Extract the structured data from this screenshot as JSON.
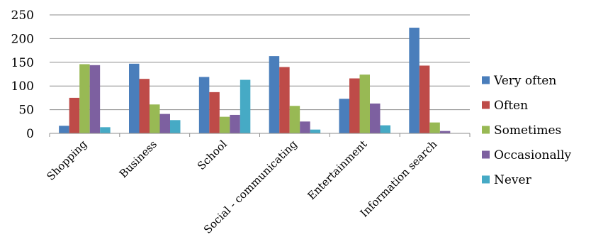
{
  "chart_data": {
    "type": "bar",
    "title": "",
    "xlabel": "",
    "ylabel": "",
    "ylim": [
      0,
      250
    ],
    "yticks": [
      0,
      50,
      100,
      150,
      200,
      250
    ],
    "grid": true,
    "legend_position": "right",
    "categories": [
      "Shopping",
      "Business",
      "School",
      "Social - communicating",
      "Entertainment",
      "Information search"
    ],
    "series": [
      {
        "name": "Very often",
        "color": "#4a7ebb",
        "values": [
          16,
          147,
          119,
          163,
          73,
          223
        ]
      },
      {
        "name": "Often",
        "color": "#be4b48",
        "values": [
          75,
          115,
          87,
          140,
          116,
          143
        ]
      },
      {
        "name": "Sometimes",
        "color": "#98b954",
        "values": [
          146,
          61,
          35,
          58,
          124,
          23
        ]
      },
      {
        "name": "Occasionally",
        "color": "#7d60a0",
        "values": [
          144,
          41,
          39,
          25,
          63,
          5
        ]
      },
      {
        "name": "Never",
        "color": "#46aac5",
        "values": [
          13,
          28,
          113,
          8,
          17,
          0
        ]
      }
    ]
  }
}
